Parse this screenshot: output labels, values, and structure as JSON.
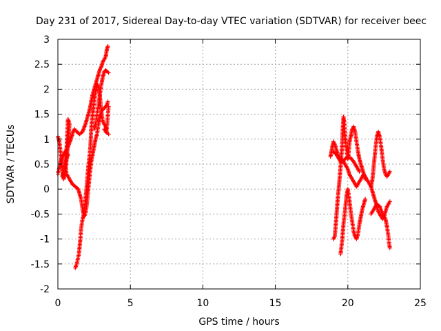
{
  "chart_data": {
    "type": "scatter",
    "title": "Day 231 of 2017, Sidereal Day-to-day VTEC variation (SDTVAR) for receiver beec",
    "xlabel": "GPS time / hours",
    "ylabel": "SDTVAR / TECUs",
    "xlim": [
      0,
      25
    ],
    "ylim": [
      -2,
      3
    ],
    "xticks": [
      0,
      5,
      10,
      15,
      20,
      25
    ],
    "yticks": [
      -2,
      -1.5,
      -1,
      -0.5,
      0,
      0.5,
      1,
      1.5,
      2,
      2.5,
      3
    ],
    "grid": true,
    "marker": "+",
    "color": "#ff0000",
    "series": [
      {
        "name": "SDTVAR",
        "paths": [
          [
            [
              0.0,
              1.05
            ],
            [
              0.1,
              0.95
            ],
            [
              0.2,
              0.7
            ],
            [
              0.3,
              0.4
            ],
            [
              0.4,
              0.2
            ],
            [
              0.5,
              0.3
            ],
            [
              0.6,
              0.6
            ],
            [
              0.7,
              0.9
            ],
            [
              0.8,
              1.3
            ],
            [
              0.7,
              1.4
            ],
            [
              0.6,
              0.8
            ],
            [
              0.5,
              0.5
            ],
            [
              0.6,
              0.3
            ],
            [
              0.8,
              0.2
            ],
            [
              1.0,
              0.1
            ],
            [
              1.2,
              0.05
            ],
            [
              1.4,
              0.0
            ],
            [
              1.5,
              -0.1
            ],
            [
              1.6,
              -0.2
            ],
            [
              1.7,
              -0.4
            ],
            [
              1.8,
              -0.55
            ],
            [
              1.9,
              -0.5
            ],
            [
              2.0,
              -0.3
            ],
            [
              2.1,
              0.0
            ],
            [
              2.2,
              0.3
            ],
            [
              2.3,
              0.55
            ],
            [
              2.4,
              0.7
            ],
            [
              2.5,
              0.85
            ],
            [
              2.6,
              1.0
            ],
            [
              2.7,
              1.1
            ],
            [
              2.8,
              1.3
            ],
            [
              2.9,
              1.45
            ],
            [
              3.0,
              1.55
            ],
            [
              3.1,
              1.6
            ],
            [
              3.2,
              1.62
            ],
            [
              3.3,
              1.65
            ],
            [
              3.4,
              1.7
            ],
            [
              3.45,
              1.75
            ]
          ],
          [
            [
              0.0,
              0.3
            ],
            [
              0.15,
              0.5
            ],
            [
              0.3,
              0.65
            ],
            [
              0.5,
              0.75
            ],
            [
              0.7,
              0.85
            ],
            [
              0.9,
              1.0
            ],
            [
              1.05,
              1.15
            ],
            [
              1.15,
              1.2
            ],
            [
              1.3,
              1.15
            ],
            [
              1.5,
              1.1
            ],
            [
              1.7,
              1.15
            ],
            [
              1.9,
              1.3
            ],
            [
              2.05,
              1.45
            ],
            [
              2.2,
              1.6
            ],
            [
              2.3,
              1.75
            ],
            [
              2.4,
              1.9
            ],
            [
              2.5,
              2.0
            ],
            [
              2.6,
              2.1
            ],
            [
              2.7,
              2.2
            ],
            [
              2.8,
              2.3
            ],
            [
              2.9,
              2.4
            ],
            [
              3.0,
              2.45
            ],
            [
              3.1,
              2.55
            ],
            [
              3.2,
              2.6
            ],
            [
              3.3,
              2.65
            ],
            [
              3.35,
              2.75
            ],
            [
              3.4,
              2.82
            ],
            [
              3.45,
              2.86
            ]
          ],
          [
            [
              1.2,
              -1.58
            ],
            [
              1.3,
              -1.5
            ],
            [
              1.45,
              -1.3
            ],
            [
              1.55,
              -1.0
            ],
            [
              1.6,
              -0.8
            ],
            [
              1.7,
              -0.6
            ],
            [
              1.8,
              -0.5
            ],
            [
              1.9,
              -0.2
            ],
            [
              2.0,
              0.1
            ],
            [
              2.1,
              0.45
            ],
            [
              2.2,
              0.7
            ],
            [
              2.25,
              0.9
            ],
            [
              2.3,
              1.2
            ],
            [
              2.4,
              1.5
            ],
            [
              2.5,
              1.75
            ],
            [
              2.6,
              1.95
            ],
            [
              2.7,
              2.1
            ],
            [
              2.8,
              2.05
            ],
            [
              2.9,
              1.85
            ],
            [
              3.0,
              1.55
            ],
            [
              3.1,
              1.35
            ],
            [
              3.2,
              1.3
            ],
            [
              3.3,
              1.25
            ],
            [
              3.35,
              1.15
            ],
            [
              3.4,
              1.3
            ],
            [
              3.45,
              1.5
            ],
            [
              3.5,
              1.65
            ]
          ],
          [
            [
              2.5,
              1.2
            ],
            [
              2.6,
              1.3
            ],
            [
              2.7,
              1.5
            ],
            [
              2.8,
              1.7
            ],
            [
              2.9,
              1.9
            ],
            [
              3.0,
              2.1
            ],
            [
              3.1,
              2.25
            ],
            [
              3.2,
              2.35
            ],
            [
              3.3,
              2.38
            ],
            [
              3.4,
              2.35
            ],
            [
              3.5,
              2.33
            ]
          ],
          [
            [
              3.2,
              1.2
            ],
            [
              3.3,
              1.15
            ],
            [
              3.4,
              1.12
            ],
            [
              3.5,
              1.1
            ]
          ],
          [
            [
              0.3,
              0.25
            ],
            [
              0.4,
              0.35
            ],
            [
              0.55,
              0.55
            ],
            [
              0.7,
              0.7
            ]
          ],
          [
            [
              18.8,
              0.65
            ],
            [
              18.9,
              0.8
            ],
            [
              19.0,
              0.95
            ],
            [
              19.1,
              0.9
            ],
            [
              19.2,
              0.8
            ],
            [
              19.3,
              0.7
            ],
            [
              19.4,
              0.6
            ],
            [
              19.5,
              0.55
            ],
            [
              19.6,
              0.6
            ],
            [
              19.7,
              0.55
            ],
            [
              19.8,
              0.5
            ],
            [
              19.9,
              0.45
            ],
            [
              20.0,
              0.4
            ],
            [
              20.1,
              0.3
            ],
            [
              20.2,
              0.25
            ],
            [
              20.3,
              0.2
            ],
            [
              20.4,
              0.15
            ],
            [
              20.5,
              0.1
            ],
            [
              20.6,
              0.05
            ],
            [
              20.7,
              0.1
            ],
            [
              20.8,
              0.15
            ],
            [
              20.9,
              0.2
            ],
            [
              21.0,
              0.25
            ],
            [
              21.1,
              0.3
            ],
            [
              21.2,
              0.25
            ],
            [
              21.3,
              0.2
            ],
            [
              21.4,
              0.15
            ],
            [
              21.5,
              0.1
            ],
            [
              21.6,
              0.05
            ],
            [
              21.7,
              -0.05
            ],
            [
              21.8,
              -0.15
            ],
            [
              21.9,
              -0.25
            ],
            [
              22.0,
              -0.35
            ],
            [
              22.1,
              -0.45
            ],
            [
              22.2,
              -0.5
            ],
            [
              22.3,
              -0.55
            ],
            [
              22.4,
              -0.6
            ],
            [
              22.5,
              -0.55
            ],
            [
              22.6,
              -0.45
            ],
            [
              22.7,
              -0.35
            ],
            [
              22.8,
              -0.3
            ],
            [
              22.9,
              -0.25
            ]
          ],
          [
            [
              19.0,
              -1.0
            ],
            [
              19.1,
              -0.95
            ],
            [
              19.2,
              -0.6
            ],
            [
              19.3,
              -0.2
            ],
            [
              19.4,
              0.1
            ],
            [
              19.5,
              0.45
            ],
            [
              19.6,
              0.85
            ],
            [
              19.65,
              1.2
            ],
            [
              19.7,
              1.45
            ],
            [
              19.75,
              1.35
            ],
            [
              19.8,
              1.1
            ],
            [
              19.9,
              0.8
            ],
            [
              20.0,
              0.6
            ],
            [
              20.05,
              0.7
            ],
            [
              20.1,
              0.9
            ],
            [
              20.15,
              1.0
            ],
            [
              20.2,
              1.05
            ],
            [
              20.3,
              1.2
            ],
            [
              20.4,
              1.25
            ],
            [
              20.5,
              1.15
            ],
            [
              20.6,
              0.95
            ],
            [
              20.7,
              0.75
            ],
            [
              20.8,
              0.6
            ],
            [
              20.9,
              0.5
            ],
            [
              21.0,
              0.4
            ],
            [
              21.1,
              0.3
            ],
            [
              21.2,
              0.2
            ]
          ],
          [
            [
              19.5,
              -1.3
            ],
            [
              19.6,
              -1.05
            ],
            [
              19.7,
              -0.7
            ],
            [
              19.8,
              -0.45
            ],
            [
              19.9,
              -0.15
            ],
            [
              20.0,
              0.0
            ],
            [
              20.1,
              -0.2
            ],
            [
              20.2,
              -0.45
            ],
            [
              20.3,
              -0.65
            ],
            [
              20.4,
              -0.85
            ],
            [
              20.5,
              -0.95
            ],
            [
              20.6,
              -1.0
            ],
            [
              20.7,
              -0.9
            ],
            [
              20.8,
              -0.7
            ],
            [
              20.9,
              -0.55
            ],
            [
              21.0,
              -0.4
            ],
            [
              21.1,
              -0.3
            ],
            [
              21.2,
              -0.2
            ]
          ],
          [
            [
              19.0,
              0.75
            ],
            [
              19.2,
              0.7
            ],
            [
              19.4,
              0.6
            ],
            [
              19.6,
              0.55
            ],
            [
              19.8,
              0.6
            ],
            [
              20.0,
              0.65
            ],
            [
              20.2,
              0.62
            ],
            [
              20.4,
              0.55
            ],
            [
              20.6,
              0.45
            ],
            [
              20.8,
              0.35
            ]
          ],
          [
            [
              21.6,
              0.05
            ],
            [
              21.7,
              0.2
            ],
            [
              21.8,
              0.5
            ],
            [
              21.9,
              0.8
            ],
            [
              22.0,
              1.05
            ],
            [
              22.1,
              1.15
            ],
            [
              22.2,
              1.05
            ],
            [
              22.3,
              0.85
            ],
            [
              22.4,
              0.6
            ],
            [
              22.5,
              0.4
            ],
            [
              22.6,
              0.3
            ],
            [
              22.7,
              0.25
            ],
            [
              22.8,
              0.3
            ],
            [
              22.9,
              0.35
            ]
          ],
          [
            [
              21.6,
              -0.5
            ],
            [
              21.8,
              -0.4
            ],
            [
              22.0,
              -0.3
            ],
            [
              22.2,
              -0.35
            ],
            [
              22.4,
              -0.5
            ],
            [
              22.6,
              -0.6
            ],
            [
              22.7,
              -0.75
            ],
            [
              22.8,
              -0.95
            ],
            [
              22.85,
              -1.1
            ],
            [
              22.9,
              -1.18
            ]
          ]
        ]
      }
    ]
  }
}
